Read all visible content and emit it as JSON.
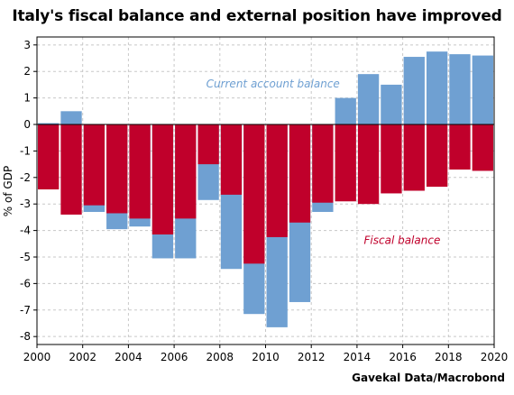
{
  "chart_data": {
    "type": "bar",
    "title": "Italy's fiscal balance and external position have improved",
    "ylabel": "% of GDP",
    "xlabel": "",
    "source": "Gavekal Data/Macrobond",
    "x": [
      2000,
      2001,
      2002,
      2003,
      2004,
      2005,
      2006,
      2007,
      2008,
      2009,
      2010,
      2011,
      2012,
      2013,
      2014,
      2015,
      2016,
      2017,
      2018,
      2019
    ],
    "xlim": [
      2000,
      2020
    ],
    "ylim": [
      -8.3,
      3.3
    ],
    "xticks": [
      "2000",
      "2002",
      "2004",
      "2006",
      "2008",
      "2010",
      "2012",
      "2014",
      "2016",
      "2018",
      "2020"
    ],
    "yticks": [
      "3",
      "2",
      "1",
      "0",
      "-1",
      "-2",
      "-3",
      "-4",
      "-5",
      "-6",
      "-7",
      "-8"
    ],
    "grid": true,
    "series": [
      {
        "name": "Current account balance",
        "color": "#6fa0d2",
        "values": [
          0.05,
          0.5,
          -3.3,
          -3.95,
          -3.85,
          -5.05,
          -5.05,
          -2.85,
          -5.45,
          -7.15,
          -7.65,
          -6.7,
          -3.3,
          1.0,
          1.9,
          1.5,
          2.55,
          2.75,
          2.65,
          2.6
        ]
      },
      {
        "name": "Fiscal balance",
        "color": "#c0002b",
        "values": [
          -2.45,
          -3.4,
          -3.05,
          -3.35,
          -3.55,
          -4.15,
          -3.55,
          -1.5,
          -2.65,
          -5.25,
          -4.25,
          -3.7,
          -2.95,
          -2.9,
          -3.0,
          -2.6,
          -2.5,
          -2.35,
          -1.7,
          -1.75
        ]
      }
    ],
    "annotations": [
      {
        "text": "Current account balance",
        "series": 0,
        "x": 2007.4,
        "y": 1.4
      },
      {
        "text": "Fiscal balance",
        "series": 1,
        "x": 2014.3,
        "y": -4.5
      }
    ]
  }
}
